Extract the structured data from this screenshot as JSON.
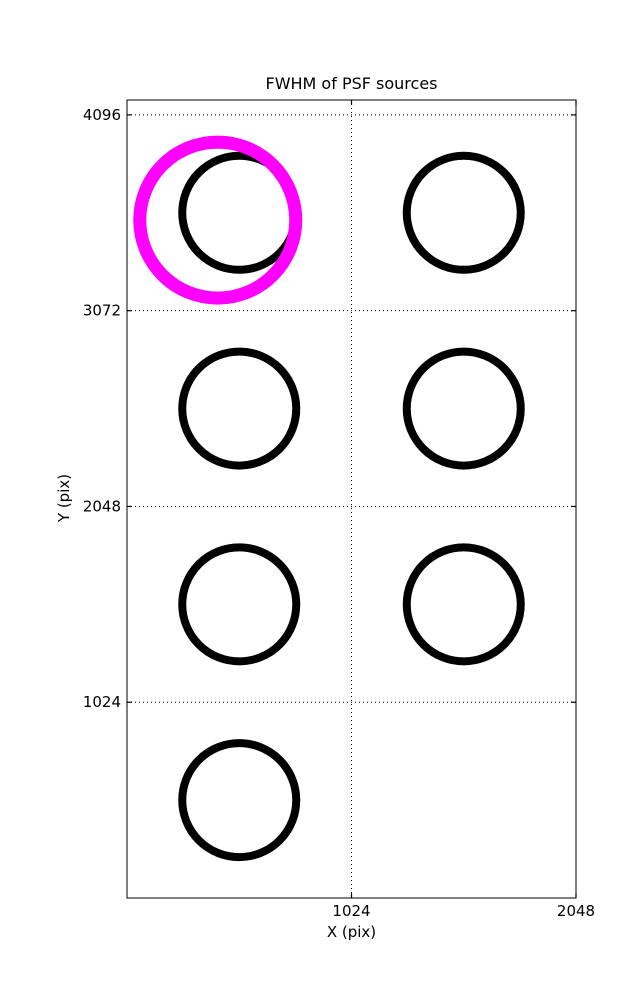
{
  "figure": {
    "background": "#ffffff"
  },
  "chart_data": {
    "type": "scatter",
    "title": "FWHM of PSF sources",
    "xlabel": "X (pix)",
    "ylabel": "Y (pix)",
    "xlim": [
      0,
      2048
    ],
    "ylim": [
      0,
      4174
    ],
    "xticks": [
      1024,
      2048
    ],
    "yticks": [
      1024,
      2048,
      3072,
      4096
    ],
    "grid": "dotted",
    "grid_color": "#000000",
    "legend": "none",
    "sources": [
      {
        "x": 512,
        "y": 3584
      },
      {
        "x": 1536,
        "y": 3584
      },
      {
        "x": 512,
        "y": 2560
      },
      {
        "x": 1536,
        "y": 2560
      },
      {
        "x": 512,
        "y": 1536
      },
      {
        "x": 1536,
        "y": 1536
      },
      {
        "x": 512,
        "y": 512
      }
    ],
    "source_marker": {
      "shape": "open-circle",
      "radius_px": 57,
      "stroke_px": 8,
      "color": "#000000"
    },
    "highlight": {
      "x": 414,
      "y": 3546,
      "shape": "open-circle",
      "radius_px": 78,
      "stroke_px": 13,
      "color": "#ff00ff"
    }
  }
}
